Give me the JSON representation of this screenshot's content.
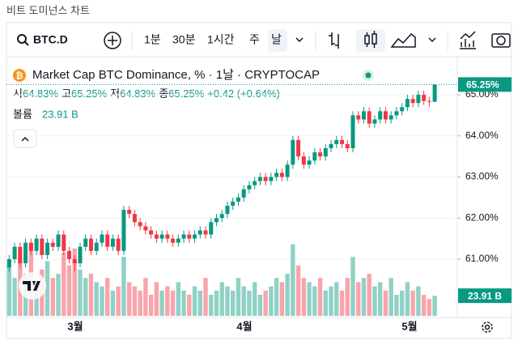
{
  "window_title": "비트 도미넌스 차트",
  "toolbar": {
    "symbol": "BTC.D",
    "intervals": [
      "1분",
      "30분",
      "1시간",
      "주",
      "날"
    ]
  },
  "legend": {
    "title": "Market Cap BTC Dominance, % · 1날 · CRYPTOCAP",
    "ohlc": [
      {
        "label": "시",
        "value": "64.83%"
      },
      {
        "label": "고",
        "value": "65.25%"
      },
      {
        "label": "저",
        "value": "64.83%"
      },
      {
        "label": "종",
        "value": "65.25%"
      }
    ],
    "change": "+0.42 (+0.64%)",
    "volume_label": "볼륨",
    "volume_value": "23.91 B"
  },
  "chart_data": {
    "type": "candlestick",
    "open": [
      60.8,
      61.0,
      61.3,
      60.9,
      61.4,
      61.2,
      61.5,
      61.1,
      61.4,
      61.3,
      61.6,
      61.2,
      61.0,
      60.9,
      61.3,
      61.5,
      61.2,
      61.4,
      61.6,
      61.3,
      61.5,
      61.2,
      62.2,
      62.1,
      61.9,
      61.8,
      61.7,
      61.6,
      61.5,
      61.6,
      61.5,
      61.4,
      61.5,
      61.6,
      61.5,
      61.6,
      61.7,
      61.6,
      61.9,
      62.0,
      62.1,
      62.3,
      62.4,
      62.5,
      62.7,
      62.8,
      62.9,
      63.0,
      62.9,
      63.0,
      63.1,
      63.0,
      63.3,
      63.9,
      63.5,
      63.3,
      63.4,
      63.6,
      63.5,
      63.7,
      63.8,
      63.9,
      63.8,
      63.7,
      64.5,
      64.4,
      64.6,
      64.3,
      64.4,
      64.6,
      64.4,
      64.5,
      64.6,
      64.7,
      64.9,
      64.8,
      65.0,
      64.85,
      64.83
    ],
    "high": [
      61.1,
      61.4,
      61.4,
      61.5,
      61.5,
      61.6,
      61.6,
      61.5,
      61.5,
      61.7,
      61.7,
      61.3,
      61.1,
      61.4,
      61.6,
      61.6,
      61.5,
      61.7,
      61.7,
      61.6,
      61.6,
      62.3,
      62.3,
      62.2,
      62.0,
      61.9,
      61.8,
      61.7,
      61.7,
      61.7,
      61.6,
      61.6,
      61.7,
      61.7,
      61.7,
      61.8,
      61.8,
      62.0,
      62.1,
      62.2,
      62.4,
      62.5,
      62.6,
      62.8,
      62.9,
      63.0,
      63.1,
      63.1,
      63.1,
      63.2,
      63.2,
      63.4,
      64.0,
      64.0,
      63.6,
      63.5,
      63.7,
      63.7,
      63.8,
      63.9,
      64.0,
      64.0,
      63.9,
      64.6,
      64.6,
      64.7,
      64.7,
      64.5,
      64.7,
      64.7,
      64.6,
      64.7,
      64.8,
      65.0,
      65.0,
      65.1,
      65.1,
      64.95,
      65.25
    ],
    "low": [
      60.7,
      60.9,
      60.8,
      60.8,
      61.1,
      61.1,
      61.0,
      61.0,
      61.2,
      61.2,
      61.1,
      60.9,
      60.7,
      60.8,
      61.2,
      61.1,
      61.1,
      61.3,
      61.2,
      61.2,
      61.1,
      61.1,
      62.0,
      61.8,
      61.7,
      61.6,
      61.5,
      61.4,
      61.4,
      61.4,
      61.3,
      61.3,
      61.4,
      61.4,
      61.4,
      61.5,
      61.5,
      61.5,
      61.8,
      61.9,
      62.0,
      62.2,
      62.3,
      62.4,
      62.6,
      62.7,
      62.8,
      62.8,
      62.8,
      62.9,
      62.9,
      62.9,
      63.2,
      63.4,
      63.2,
      63.2,
      63.3,
      63.4,
      63.4,
      63.6,
      63.7,
      63.7,
      63.6,
      63.6,
      64.3,
      64.3,
      64.2,
      64.2,
      64.3,
      64.3,
      64.3,
      64.4,
      64.5,
      64.6,
      64.7,
      64.7,
      64.75,
      64.7,
      64.83
    ],
    "close": [
      61.0,
      61.3,
      60.9,
      61.4,
      61.2,
      61.5,
      61.1,
      61.4,
      61.3,
      61.6,
      61.2,
      61.0,
      60.9,
      61.3,
      61.5,
      61.2,
      61.4,
      61.6,
      61.3,
      61.5,
      61.2,
      62.2,
      62.1,
      61.9,
      61.8,
      61.7,
      61.6,
      61.5,
      61.6,
      61.5,
      61.4,
      61.5,
      61.6,
      61.5,
      61.6,
      61.7,
      61.6,
      61.9,
      62.0,
      62.1,
      62.3,
      62.4,
      62.5,
      62.7,
      62.8,
      62.9,
      63.0,
      62.9,
      63.0,
      63.1,
      63.0,
      63.3,
      63.9,
      63.5,
      63.3,
      63.4,
      63.6,
      63.5,
      63.7,
      63.8,
      63.9,
      63.8,
      63.7,
      64.5,
      64.4,
      64.6,
      64.3,
      64.4,
      64.6,
      64.4,
      64.5,
      64.6,
      64.7,
      64.9,
      64.8,
      65.0,
      64.85,
      64.83,
      65.25
    ],
    "volume": [
      60,
      45,
      70,
      50,
      85,
      40,
      55,
      65,
      45,
      50,
      75,
      60,
      80,
      55,
      45,
      50,
      40,
      35,
      45,
      30,
      35,
      70,
      40,
      35,
      30,
      45,
      25,
      40,
      30,
      35,
      30,
      40,
      30,
      25,
      35,
      30,
      45,
      25,
      30,
      40,
      35,
      30,
      45,
      35,
      30,
      40,
      25,
      30,
      35,
      45,
      40,
      50,
      85,
      60,
      45,
      40,
      35,
      45,
      30,
      35,
      40,
      30,
      45,
      70,
      40,
      45,
      50,
      35,
      40,
      30,
      45,
      25,
      30,
      40,
      30,
      35,
      25,
      20,
      23.91
    ],
    "ylim": [
      59.62,
      65.77
    ],
    "vlim": [
      0,
      300
    ],
    "yticks": [
      {
        "value": 61,
        "label": "61.00%"
      },
      {
        "value": 62,
        "label": "62.00%"
      },
      {
        "value": 63,
        "label": "63.00%"
      },
      {
        "value": 64,
        "label": "64.00%"
      },
      {
        "value": 65,
        "label": "65.00%"
      }
    ],
    "xlabels": [
      "3월",
      "4월",
      "5월"
    ],
    "last_price_label": "65.25%",
    "last_volume_label": "23.91 B",
    "up_color": "#089981",
    "down_color": "#f23645"
  }
}
